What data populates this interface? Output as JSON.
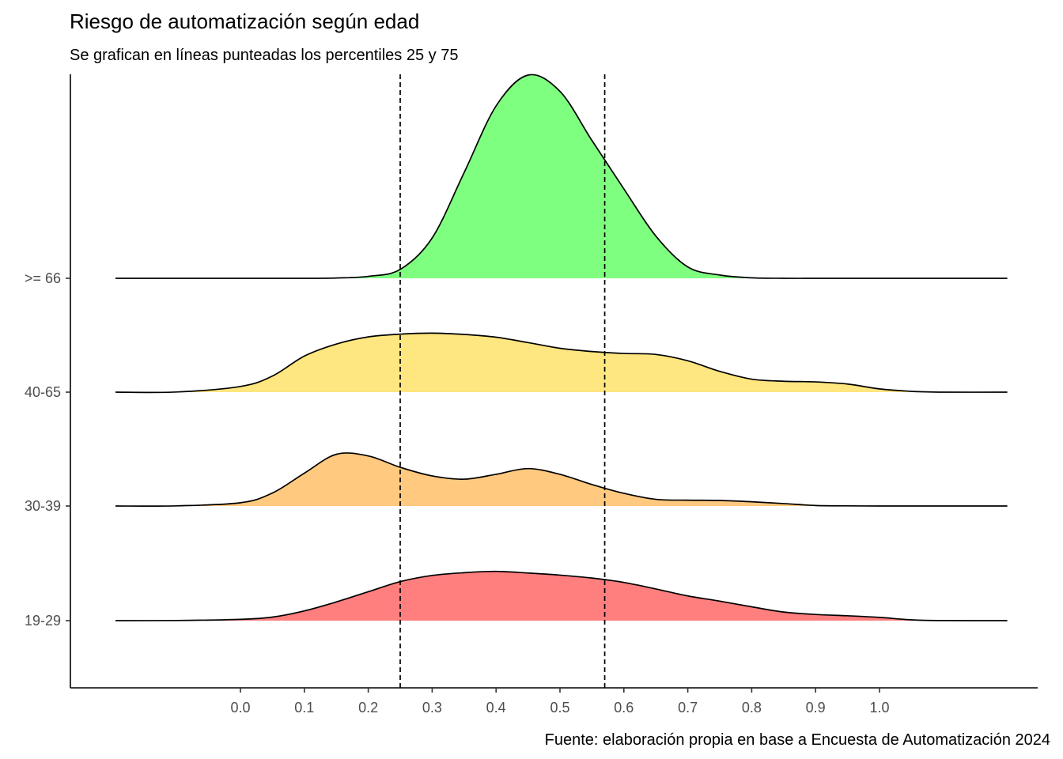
{
  "chart_data": {
    "type": "ridgeline",
    "title": "Riesgo de automatización según edad",
    "subtitle": "Se grafican en líneas punteadas los percentiles 25 y 75",
    "caption": "Fuente: elaboración propia en base a Encuesta de Automatización 2024",
    "xlabel": "",
    "ylabel": "",
    "x_ticks": [
      0.0,
      0.1,
      0.2,
      0.3,
      0.4,
      0.5,
      0.6,
      0.7,
      0.8,
      0.9,
      1.0
    ],
    "x_tick_labels": [
      "0.0",
      "0.1",
      "0.2",
      "0.3",
      "0.4",
      "0.5",
      "0.6",
      "0.7",
      "0.8",
      "0.9",
      "1.0"
    ],
    "xlim": [
      -0.27,
      1.23
    ],
    "grid": false,
    "percentile_lines": [
      {
        "name": "p25",
        "x": 0.25
      },
      {
        "name": "p75",
        "x": 0.57
      }
    ],
    "density_x": [
      -0.195,
      -0.1,
      0.0,
      0.05,
      0.1,
      0.15,
      0.2,
      0.25,
      0.3,
      0.35,
      0.4,
      0.45,
      0.5,
      0.55,
      0.6,
      0.65,
      0.7,
      0.75,
      0.8,
      0.85,
      0.9,
      0.95,
      1.0,
      1.05,
      1.1,
      1.2
    ],
    "series": [
      {
        "name": "19-29",
        "color": "#ff7f7f",
        "density": [
          0.0,
          0.01,
          0.08,
          0.22,
          0.6,
          1.15,
          1.78,
          2.4,
          2.78,
          2.95,
          3.03,
          2.93,
          2.8,
          2.62,
          2.35,
          1.95,
          1.52,
          1.2,
          0.85,
          0.53,
          0.38,
          0.3,
          0.2,
          0.05,
          0.005,
          0.0
        ]
      },
      {
        "name": "30-39",
        "color": "#ffc97f",
        "density": [
          0.0,
          0.01,
          0.2,
          0.8,
          2.02,
          3.18,
          3.08,
          2.38,
          1.85,
          1.65,
          1.95,
          2.3,
          1.95,
          1.32,
          0.78,
          0.41,
          0.36,
          0.34,
          0.26,
          0.15,
          0.03,
          0.01,
          0.0,
          0.0,
          0.0,
          0.0
        ]
      },
      {
        "name": "40-65",
        "color": "#fee680",
        "density": [
          0.0,
          0.01,
          0.35,
          0.99,
          2.22,
          2.96,
          3.4,
          3.57,
          3.63,
          3.55,
          3.38,
          3.05,
          2.7,
          2.5,
          2.38,
          2.32,
          1.93,
          1.28,
          0.8,
          0.67,
          0.63,
          0.5,
          0.2,
          0.05,
          0.0,
          0.0
        ]
      },
      {
        "name": ">= 66",
        "color": "#7fff7f",
        "density": [
          0.0,
          0.0,
          0.0,
          0.0,
          0.0,
          0.02,
          0.12,
          0.55,
          2.48,
          6.5,
          10.6,
          12.5,
          11.5,
          8.48,
          5.5,
          2.6,
          0.7,
          0.2,
          0.03,
          0.0,
          0.0,
          0.0,
          0.0,
          0.0,
          0.0,
          0.0
        ]
      }
    ]
  }
}
